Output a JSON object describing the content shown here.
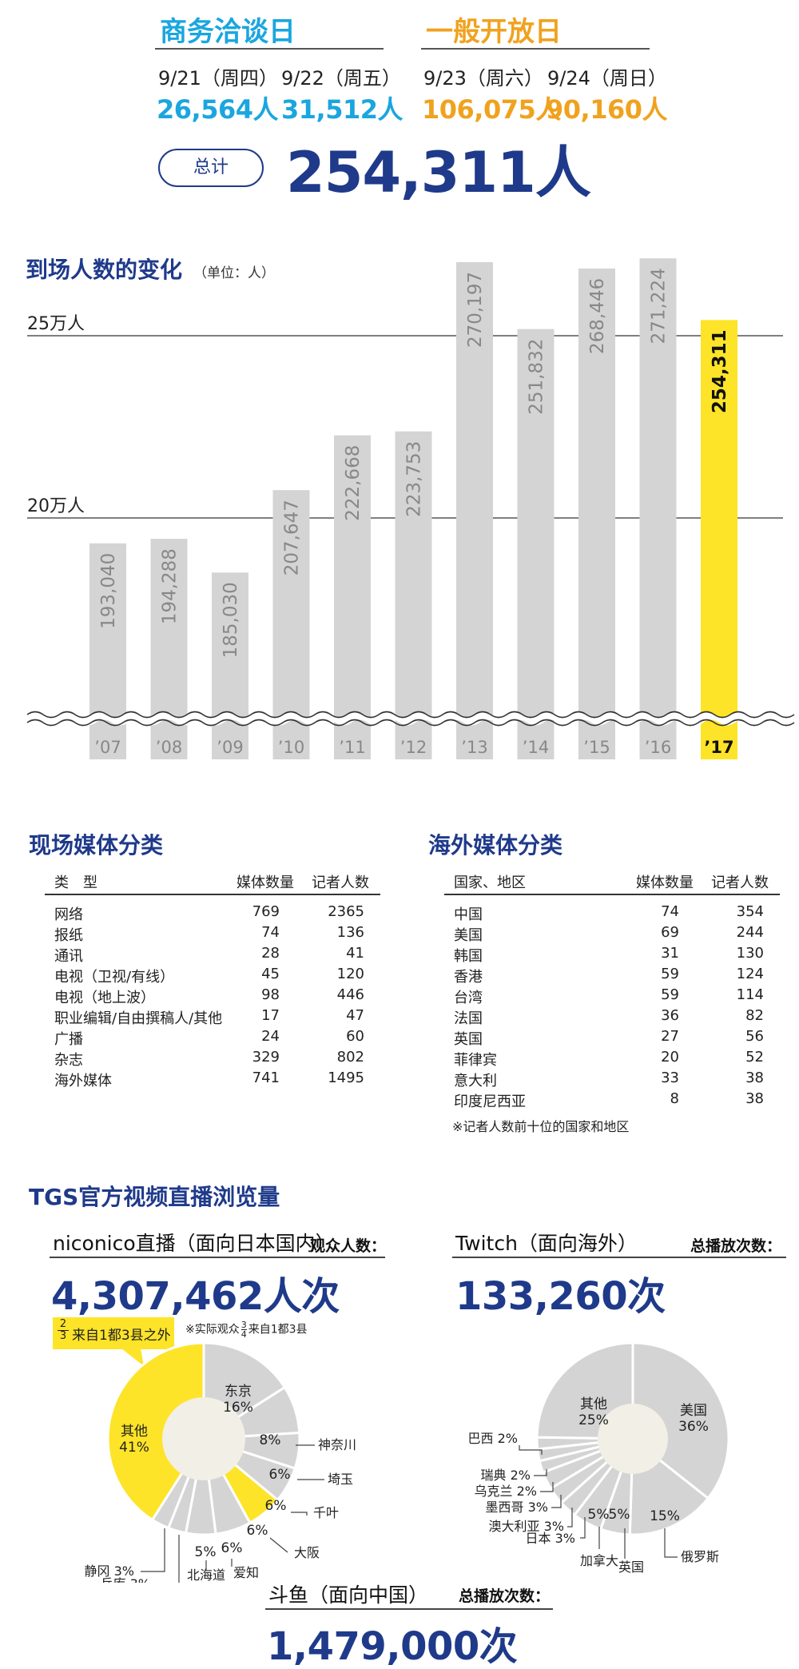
{
  "header": {
    "business_title": "商务洽谈日",
    "public_title": "一般开放日",
    "days": [
      {
        "date": "9/21（周四）",
        "count": "26,564人"
      },
      {
        "date": "9/22（周五）",
        "count": "31,512人"
      },
      {
        "date": "9/23（周六）",
        "count": "106,075人"
      },
      {
        "date": "9/24（周日）",
        "count": "90,160人"
      }
    ],
    "total_label": "总计",
    "total_value": "254,311人"
  },
  "attendance": {
    "title": "到场人数的变化",
    "unit": "（单位：人）",
    "gridline_labels": [
      "25万人",
      "20万人"
    ]
  },
  "chart_data": [
    {
      "type": "bar",
      "title": "到场人数的变化",
      "unit": "（单位：人）",
      "categories": [
        "’07",
        "’08",
        "’09",
        "’10",
        "’11",
        "’12",
        "’13",
        "’14",
        "’15",
        "’16",
        "’17"
      ],
      "values": [
        193040,
        194288,
        185030,
        207647,
        222668,
        223753,
        270197,
        251832,
        268446,
        271224,
        254311
      ],
      "value_labels": [
        "193,040",
        "194,288",
        "185,030",
        "207,647",
        "222,668",
        "223,753",
        "270,197",
        "251,832",
        "268,446",
        "271,224",
        "254,311"
      ],
      "gridlines": [
        250000,
        200000
      ],
      "axis_break": true,
      "highlight_index": 10,
      "colors": {
        "bar": "#d4d4d4",
        "highlight": "#fde428"
      }
    },
    {
      "type": "pie",
      "title": "niconico直播（面向日本国内）",
      "labels": [
        "东京",
        "神奈川",
        "埼玉",
        "千叶",
        "大阪",
        "爱知",
        "北海道",
        "兵库",
        "静冈",
        "其他"
      ],
      "values": [
        16,
        8,
        6,
        6,
        6,
        6,
        5,
        3,
        3,
        41
      ],
      "value_labels": [
        "16%",
        "8%",
        "6%",
        "6%",
        "6%",
        "6%",
        "5%",
        "3%",
        "3%",
        "41%"
      ]
    },
    {
      "type": "pie",
      "title": "Twitch（面向海外）",
      "labels": [
        "美国",
        "俄罗斯",
        "英国",
        "加拿大",
        "日本",
        "澳大利亚",
        "墨西哥",
        "乌克兰",
        "瑞典",
        "巴西",
        "其他"
      ],
      "values": [
        36,
        15,
        5,
        5,
        3,
        3,
        3,
        2,
        2,
        2,
        25
      ],
      "value_labels": [
        "36%",
        "15%",
        "5%",
        "5%",
        "3%",
        "3%",
        "3%",
        "2%",
        "2%",
        "2%",
        "25%"
      ]
    }
  ],
  "onsite_media": {
    "title": "现场媒体分类",
    "headers": [
      "类　型",
      "媒体数量",
      "记者人数"
    ],
    "rows": [
      [
        "网络",
        "769",
        "2365"
      ],
      [
        "报纸",
        "74",
        "136"
      ],
      [
        "通讯",
        "28",
        "41"
      ],
      [
        "电视（卫视/有线）",
        "45",
        "120"
      ],
      [
        "电视（地上波）",
        "98",
        "446"
      ],
      [
        "职业编辑/自由撰稿人/其他",
        "17",
        "47"
      ],
      [
        "广播",
        "24",
        "60"
      ],
      [
        "杂志",
        "329",
        "802"
      ],
      [
        "海外媒体",
        "741",
        "1495"
      ]
    ]
  },
  "overseas_media": {
    "title": "海外媒体分类",
    "headers": [
      "国家、地区",
      "媒体数量",
      "记者人数"
    ],
    "rows": [
      [
        "中国",
        "74",
        "354"
      ],
      [
        "美国",
        "69",
        "244"
      ],
      [
        "韩国",
        "31",
        "130"
      ],
      [
        "香港",
        "59",
        "124"
      ],
      [
        "台湾",
        "59",
        "114"
      ],
      [
        "法国",
        "36",
        "82"
      ],
      [
        "英国",
        "27",
        "56"
      ],
      [
        "菲律宾",
        "20",
        "52"
      ],
      [
        "意大利",
        "33",
        "38"
      ],
      [
        "印度尼西亚",
        "8",
        "38"
      ]
    ],
    "note": "※记者人数前十位的国家和地区"
  },
  "streaming": {
    "title": "TGS官方视频直播浏览量",
    "niconico": {
      "title": "niconico直播（面向日本国内）",
      "count_label": "观众人数：",
      "count": "4,307,462人次",
      "callout": "来自1都3县之外",
      "callout_frac": [
        "2",
        "3"
      ],
      "note_prefix": "※实际观众",
      "note_frac": [
        "3",
        "4"
      ],
      "note_suffix": "来自1都3县"
    },
    "twitch": {
      "title": "Twitch（面向海外）",
      "count_label": "总播放次数：",
      "count": "133,260次"
    },
    "douyu": {
      "title": "斗鱼（面向中国）",
      "count_label": "总播放次数：",
      "count": "1,479,000次"
    }
  },
  "colors": {
    "navy": "#1f3a8a",
    "cyan": "#1aa6df",
    "orange": "#f0a21e",
    "yellow": "#fde428",
    "gray": "#d4d4d4"
  }
}
